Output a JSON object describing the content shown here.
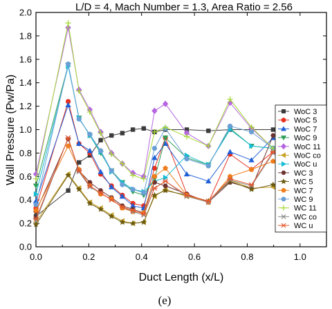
{
  "caption": "(e)",
  "chart_data": {
    "type": "line",
    "title": "L/D = 4, Mach Number = 1.3, Area Ratio = 2.56",
    "xlabel": "Duct Length (x/L)",
    "ylabel": "Wall Pressure (Pw/Pa)",
    "xlim": [
      0.0,
      1.1
    ],
    "ylim": [
      0.0,
      2.0
    ],
    "xticks": [
      0.0,
      0.2,
      0.4,
      0.6,
      0.8,
      1.0
    ],
    "xtick_labels": [
      "0.0",
      "0.2",
      "0.4",
      "0.6",
      "0.8",
      "1.0"
    ],
    "yticks": [
      0.0,
      0.2,
      0.4,
      0.6,
      0.8,
      1.0,
      1.2,
      1.4,
      1.6,
      1.8,
      2.0
    ],
    "ytick_labels": [
      "0.0",
      "0.2",
      "0.4",
      "0.6",
      "0.8",
      "1.0",
      "1.2",
      "1.4",
      "1.6",
      "1.8",
      "2.0"
    ],
    "grid": false,
    "legend_position": "right",
    "x": [
      0.0,
      0.122,
      0.163,
      0.204,
      0.245,
      0.286,
      0.327,
      0.367,
      0.408,
      0.449,
      0.49,
      0.571,
      0.653,
      0.735,
      0.816,
      0.898
    ],
    "series": [
      {
        "name": "WoC 3",
        "color": "#3b3b3b",
        "marker": "square",
        "values": [
          0.26,
          0.48,
          0.72,
          0.78,
          0.91,
          0.95,
          0.97,
          1.0,
          1.01,
          0.98,
          1.0,
          1.0,
          0.99,
          1.0,
          1.0,
          1.0
        ]
      },
      {
        "name": "WoC 5",
        "color": "#e8301f",
        "marker": "circle",
        "values": [
          0.33,
          1.24,
          0.88,
          0.8,
          0.62,
          0.52,
          0.44,
          0.37,
          0.35,
          0.67,
          0.93,
          0.45,
          0.38,
          0.79,
          0.66,
          0.81
        ]
      },
      {
        "name": "WoC 7",
        "color": "#1f5fd6",
        "marker": "triangle-up",
        "values": [
          0.39,
          1.21,
          0.88,
          0.82,
          0.64,
          0.51,
          0.43,
          0.35,
          0.33,
          0.76,
          0.88,
          0.62,
          0.56,
          0.81,
          0.74,
          0.93
        ]
      },
      {
        "name": "WoC 9",
        "color": "#2f9e59",
        "marker": "triangle-down",
        "values": [
          0.52,
          1.55,
          1.1,
          0.95,
          0.8,
          0.65,
          0.55,
          0.47,
          0.44,
          0.58,
          0.93,
          0.76,
          0.7,
          1.01,
          0.86,
          0.84
        ]
      },
      {
        "name": "WoC 11",
        "color": "#b566e0",
        "marker": "diamond",
        "values": [
          0.62,
          1.87,
          1.34,
          1.17,
          0.98,
          0.8,
          0.71,
          0.63,
          0.6,
          1.16,
          1.22,
          0.97,
          0.86,
          1.23,
          1.01,
          0.84
        ]
      },
      {
        "name": "WoC co",
        "color": "#c9a227",
        "marker": "triangle-left",
        "values": [
          0.21,
          0.62,
          0.5,
          0.38,
          0.33,
          0.27,
          0.22,
          0.2,
          0.21,
          0.43,
          0.49,
          0.43,
          0.39,
          0.57,
          0.5,
          0.51
        ]
      },
      {
        "name": "WoC u",
        "color": "#17bcd4",
        "marker": "triangle-right",
        "values": [
          0.45,
          1.54,
          1.1,
          0.95,
          0.81,
          0.64,
          0.55,
          0.49,
          0.47,
          0.56,
          0.59,
          0.78,
          0.7,
          1.0,
          0.86,
          0.84
        ]
      },
      {
        "name": "WC 3",
        "color": "#6e3330",
        "marker": "hexagon",
        "values": [
          0.3,
          0.92,
          0.65,
          0.55,
          0.48,
          0.42,
          0.35,
          0.32,
          0.29,
          0.55,
          0.52,
          0.45,
          0.38,
          0.55,
          0.5,
          0.95
        ]
      },
      {
        "name": "WC 5",
        "color": "#6b5a0f",
        "marker": "star",
        "values": [
          0.19,
          0.61,
          0.49,
          0.37,
          0.32,
          0.26,
          0.21,
          0.2,
          0.21,
          0.44,
          0.48,
          0.44,
          0.39,
          0.56,
          0.49,
          0.53
        ]
      },
      {
        "name": "WC 7",
        "color": "#f07d1a",
        "marker": "pentagon",
        "values": [
          0.31,
          0.86,
          0.66,
          0.52,
          0.45,
          0.41,
          0.33,
          0.3,
          0.29,
          0.6,
          0.67,
          0.44,
          0.38,
          0.6,
          0.66,
          0.73
        ]
      },
      {
        "name": "WC 9",
        "color": "#6a9fd6",
        "marker": "circle",
        "values": [
          0.36,
          1.56,
          1.09,
          0.96,
          0.82,
          0.65,
          0.53,
          0.49,
          0.46,
          0.84,
          1.01,
          0.75,
          0.69,
          1.03,
          0.98,
          0.84
        ]
      },
      {
        "name": "WC 11",
        "color": "#a6d934",
        "marker": "plus",
        "values": [
          0.58,
          1.91,
          1.33,
          1.15,
          0.97,
          0.79,
          0.71,
          0.61,
          0.58,
          0.98,
          1.02,
          0.94,
          0.86,
          1.26,
          1.02,
          0.84
        ]
      },
      {
        "name": "WC co",
        "color": "#8c8c8c",
        "marker": "x",
        "values": [
          0.22,
          0.93,
          0.64,
          0.51,
          0.46,
          0.4,
          0.34,
          0.3,
          0.27,
          0.5,
          0.56,
          0.43,
          0.38,
          0.57,
          0.52,
          0.8
        ]
      },
      {
        "name": "WC u",
        "color": "#e8552a",
        "marker": "asterisk",
        "values": [
          0.24,
          0.93,
          0.65,
          0.52,
          0.46,
          0.4,
          0.34,
          0.31,
          0.28,
          0.5,
          0.56,
          0.44,
          0.39,
          0.58,
          0.53,
          0.81
        ]
      }
    ]
  }
}
